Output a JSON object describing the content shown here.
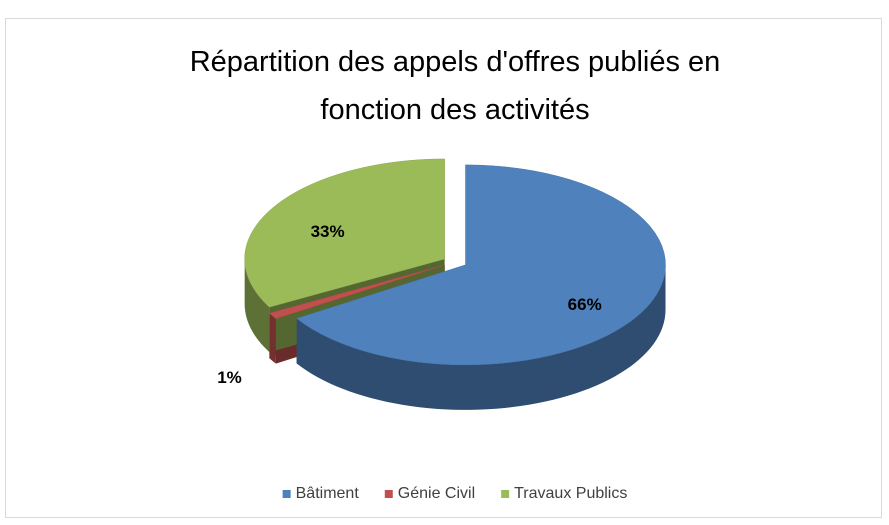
{
  "chart_data": {
    "type": "pie",
    "title": "Répartition des appels d'offres publiés en fonction des activités",
    "categories": [
      "Bâtiment",
      "Génie Civil",
      "Travaux Publics"
    ],
    "values": [
      66,
      1,
      33
    ],
    "value_labels": [
      "66%",
      "1%",
      "33%"
    ],
    "colors": [
      "#4f81bd",
      "#c0504d",
      "#9bbb59"
    ],
    "legend": "bottom"
  }
}
